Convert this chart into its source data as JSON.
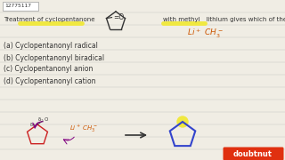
{
  "bg_color": "#f0ede4",
  "title_id": "12775117",
  "question_left": "Treatment of cyclopentanone",
  "question_right": "with methyl   lithium gives which of the following species?",
  "options": [
    "(a) Cyclopentanonyl radical",
    "(b) Cyclopentanonyl biradical",
    "(c) Cyclopentanonyl anion",
    "(d) Cyclopentanonyl cation"
  ],
  "highlight_yellow": "#f0e840",
  "highlight_blue": "#3344cc",
  "text_color": "#333333",
  "red_color": "#cc2222",
  "orange_color": "#cc5500",
  "line_color": "#999999",
  "doubtnut_red": "#e03010"
}
